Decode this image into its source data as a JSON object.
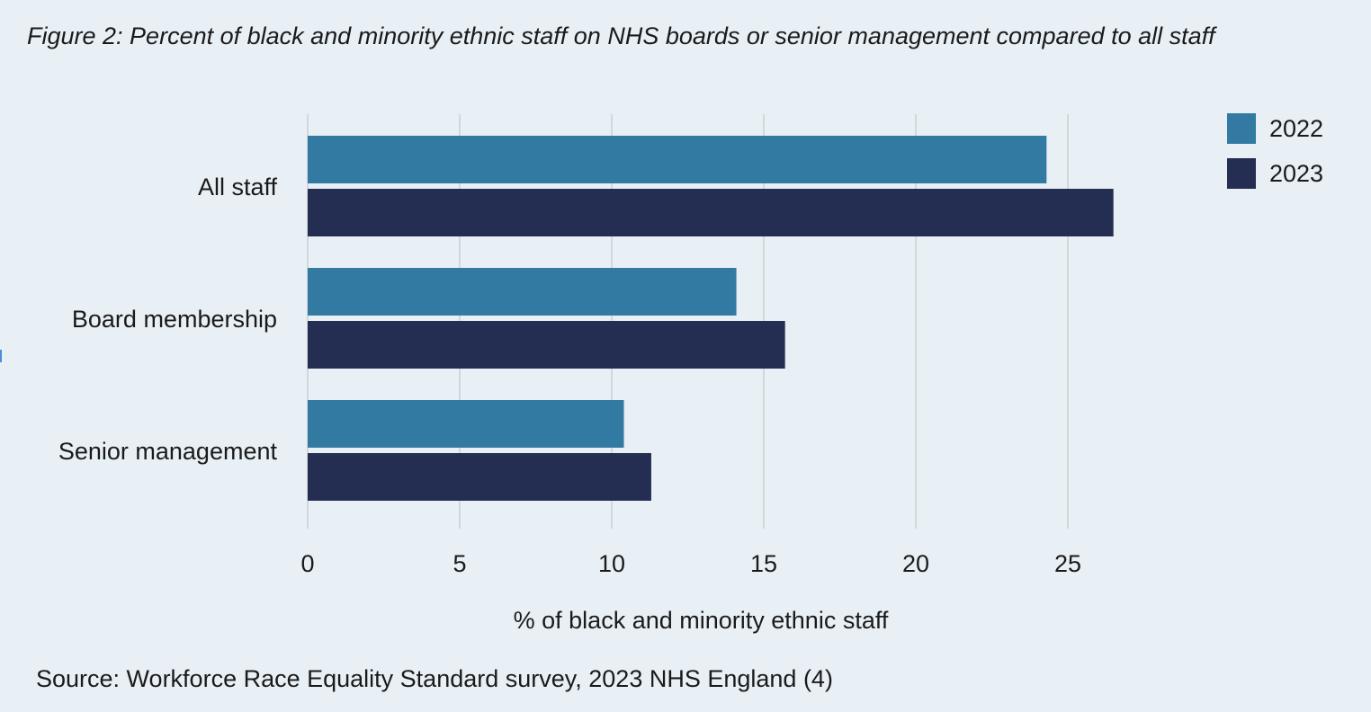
{
  "title": "Figure 2: Percent of black and minority ethnic staff on NHS boards or senior management compared to all staff",
  "source": "Source: Workforce Race Equality Standard survey, 2023 NHS England (4)",
  "chart_data": {
    "type": "bar",
    "orientation": "horizontal",
    "categories": [
      "All staff",
      "Board membership",
      "Senior management"
    ],
    "series": [
      {
        "name": "2022",
        "color": "#337aa3",
        "values": [
          24.3,
          14.1,
          10.4
        ]
      },
      {
        "name": "2023",
        "color": "#232e52",
        "values": [
          26.5,
          15.7,
          11.3
        ]
      }
    ],
    "xlabel": "% of black and minority ethnic staff",
    "ylabel": "",
    "xlim": [
      0,
      25
    ],
    "xticks": [
      0,
      5,
      10,
      15,
      20,
      25
    ],
    "grid": true,
    "legend_position": "top-right"
  }
}
